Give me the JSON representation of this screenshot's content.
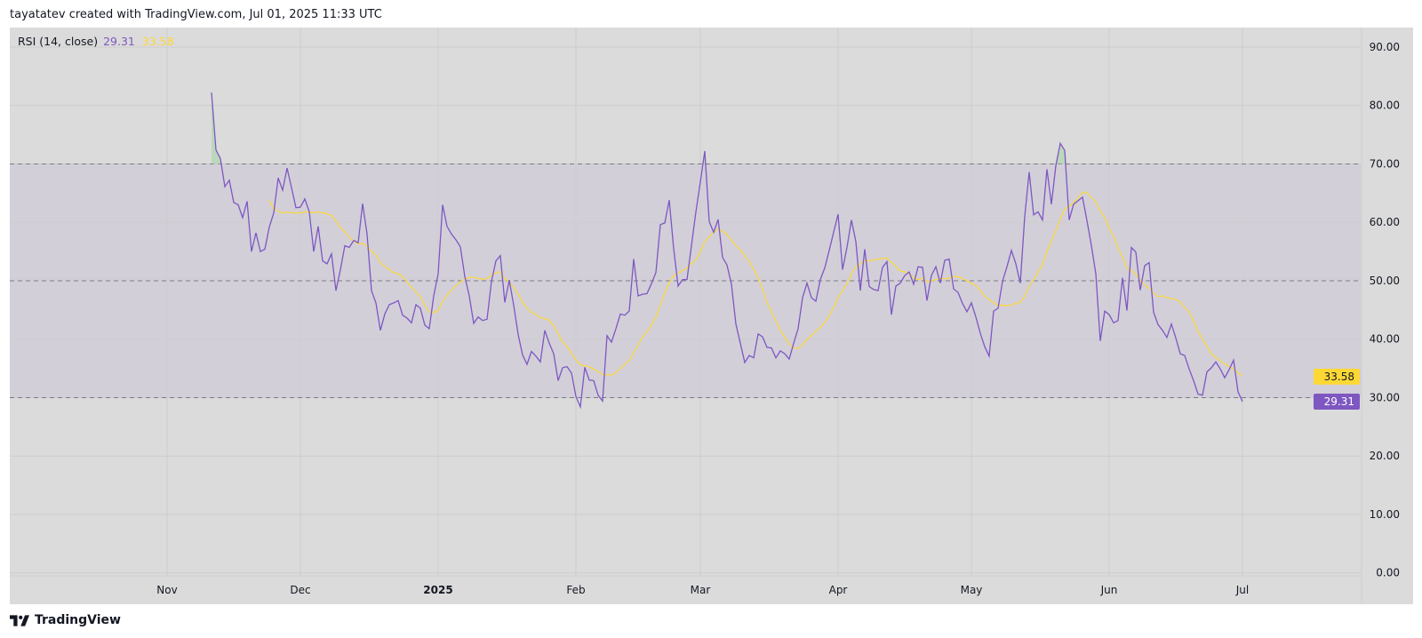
{
  "header": {
    "attribution": "tayatatev created with TradingView.com, Jul 01, 2025 11:33 UTC"
  },
  "legend": {
    "label": "RSI (14, close)",
    "rsi_value": "29.31",
    "ma_value": "33.58"
  },
  "footer": {
    "brand": "TradingView"
  },
  "colors": {
    "rsi": "#7e57c2",
    "ma": "#fdd835",
    "band": "#d2cfd9",
    "background": "#dbdbdb",
    "overbought_fill": "#a5d6a7"
  },
  "chart_data": {
    "type": "line",
    "title": "RSI (14, close)",
    "ylim": [
      0,
      90
    ],
    "y_ticks": [
      "90.00",
      "80.00",
      "70.00",
      "60.00",
      "50.00",
      "40.00",
      "30.00",
      "20.00",
      "10.00",
      "0.00"
    ],
    "x_ticks": [
      {
        "label": "Nov",
        "date": "2024-11-01"
      },
      {
        "label": "Dec",
        "date": "2024-12-01"
      },
      {
        "label": "2025",
        "date": "2025-01-01"
      },
      {
        "label": "Feb",
        "date": "2025-02-01"
      },
      {
        "label": "Mar",
        "date": "2025-03-01"
      },
      {
        "label": "Apr",
        "date": "2025-04-01"
      },
      {
        "label": "May",
        "date": "2025-05-01"
      },
      {
        "label": "Jun",
        "date": "2025-06-01"
      },
      {
        "label": "Jul",
        "date": "2025-07-01"
      }
    ],
    "grid": true,
    "levels": {
      "upper": 70,
      "middle": 50,
      "lower": 30
    },
    "last_values": {
      "rsi": "29.31",
      "ma": "33.58"
    },
    "x": [
      "2024-11-11",
      "2024-11-12",
      "2024-11-13",
      "2024-11-14",
      "2024-11-15",
      "2024-11-16",
      "2024-11-17",
      "2024-11-18",
      "2024-11-19",
      "2024-11-20",
      "2024-11-21",
      "2024-11-22",
      "2024-11-23",
      "2024-11-24",
      "2024-11-25",
      "2024-11-26",
      "2024-11-27",
      "2024-11-28",
      "2024-11-29",
      "2024-11-30",
      "2024-12-01",
      "2024-12-02",
      "2024-12-03",
      "2024-12-04",
      "2024-12-05",
      "2024-12-06",
      "2024-12-07",
      "2024-12-08",
      "2024-12-09",
      "2024-12-10",
      "2024-12-11",
      "2024-12-12",
      "2024-12-13",
      "2024-12-14",
      "2024-12-15",
      "2024-12-16",
      "2024-12-17",
      "2024-12-18",
      "2024-12-19",
      "2024-12-20",
      "2024-12-21",
      "2024-12-22",
      "2024-12-23",
      "2024-12-24",
      "2024-12-25",
      "2024-12-26",
      "2024-12-27",
      "2024-12-28",
      "2024-12-29",
      "2024-12-30",
      "2024-12-31",
      "2025-01-01",
      "2025-01-02",
      "2025-01-03",
      "2025-01-04",
      "2025-01-05",
      "2025-01-06",
      "2025-01-07",
      "2025-01-08",
      "2025-01-09",
      "2025-01-10",
      "2025-01-11",
      "2025-01-12",
      "2025-01-13",
      "2025-01-14",
      "2025-01-15",
      "2025-01-16",
      "2025-01-17",
      "2025-01-18",
      "2025-01-19",
      "2025-01-20",
      "2025-01-21",
      "2025-01-22",
      "2025-01-23",
      "2025-01-24",
      "2025-01-25",
      "2025-01-26",
      "2025-01-27",
      "2025-01-28",
      "2025-01-29",
      "2025-01-30",
      "2025-01-31",
      "2025-02-01",
      "2025-02-02",
      "2025-02-03",
      "2025-02-04",
      "2025-02-05",
      "2025-02-06",
      "2025-02-07",
      "2025-02-08",
      "2025-02-09",
      "2025-02-10",
      "2025-02-11",
      "2025-02-12",
      "2025-02-13",
      "2025-02-14",
      "2025-02-15",
      "2025-02-16",
      "2025-02-17",
      "2025-02-18",
      "2025-02-19",
      "2025-02-20",
      "2025-02-21",
      "2025-02-22",
      "2025-02-23",
      "2025-02-24",
      "2025-02-25",
      "2025-02-26",
      "2025-02-27",
      "2025-02-28",
      "2025-03-01",
      "2025-03-02",
      "2025-03-03",
      "2025-03-04",
      "2025-03-05",
      "2025-03-06",
      "2025-03-07",
      "2025-03-08",
      "2025-03-09",
      "2025-03-10",
      "2025-03-11",
      "2025-03-12",
      "2025-03-13",
      "2025-03-14",
      "2025-03-15",
      "2025-03-16",
      "2025-03-17",
      "2025-03-18",
      "2025-03-19",
      "2025-03-20",
      "2025-03-21",
      "2025-03-22",
      "2025-03-23",
      "2025-03-24",
      "2025-03-25",
      "2025-03-26",
      "2025-03-27",
      "2025-03-28",
      "2025-03-29",
      "2025-03-30",
      "2025-03-31",
      "2025-04-01",
      "2025-04-02",
      "2025-04-03",
      "2025-04-04",
      "2025-04-05",
      "2025-04-06",
      "2025-04-07",
      "2025-04-08",
      "2025-04-09",
      "2025-04-10",
      "2025-04-11",
      "2025-04-12",
      "2025-04-13",
      "2025-04-14",
      "2025-04-15",
      "2025-04-16",
      "2025-04-17",
      "2025-04-18",
      "2025-04-19",
      "2025-04-20",
      "2025-04-21",
      "2025-04-22",
      "2025-04-23",
      "2025-04-24",
      "2025-04-25",
      "2025-04-26",
      "2025-04-27",
      "2025-04-28",
      "2025-04-29",
      "2025-04-30",
      "2025-05-01",
      "2025-05-02",
      "2025-05-03",
      "2025-05-04",
      "2025-05-05",
      "2025-05-06",
      "2025-05-07",
      "2025-05-08",
      "2025-05-09",
      "2025-05-10",
      "2025-05-11",
      "2025-05-12",
      "2025-05-13",
      "2025-05-14",
      "2025-05-15",
      "2025-05-16",
      "2025-05-17",
      "2025-05-18",
      "2025-05-19",
      "2025-05-20",
      "2025-05-21",
      "2025-05-22",
      "2025-05-23",
      "2025-05-24",
      "2025-05-25",
      "2025-05-26",
      "2025-05-27",
      "2025-05-28",
      "2025-05-29",
      "2025-05-30",
      "2025-05-31",
      "2025-06-01",
      "2025-06-02",
      "2025-06-03",
      "2025-06-04",
      "2025-06-05",
      "2025-06-06",
      "2025-06-07",
      "2025-06-08",
      "2025-06-09",
      "2025-06-10",
      "2025-06-11",
      "2025-06-12",
      "2025-06-13",
      "2025-06-14",
      "2025-06-15",
      "2025-06-16",
      "2025-06-17",
      "2025-06-18",
      "2025-06-19",
      "2025-06-20",
      "2025-06-21",
      "2025-06-22",
      "2025-06-23",
      "2025-06-24",
      "2025-06-25",
      "2025-06-26",
      "2025-06-27",
      "2025-06-28",
      "2025-06-29",
      "2025-06-30",
      "2025-07-01"
    ],
    "series": [
      {
        "name": "RSI",
        "color": "#7e57c2",
        "values": [
          82.2,
          72.4,
          70.9,
          66.1,
          67.2,
          63.4,
          63.0,
          60.8,
          63.6,
          55.0,
          58.2,
          55.0,
          55.4,
          59.2,
          61.6,
          67.6,
          65.5,
          69.3,
          65.9,
          62.5,
          62.6,
          64.0,
          61.8,
          55.0,
          59.3,
          53.4,
          52.9,
          54.6,
          48.3,
          51.9,
          56.0,
          55.7,
          56.9,
          56.5,
          63.2,
          58.0,
          48.3,
          46.2,
          41.5,
          44.3,
          45.9,
          46.2,
          46.6,
          44.1,
          43.6,
          42.8,
          45.9,
          45.3,
          42.4,
          41.8,
          47.4,
          51.2,
          63.0,
          59.3,
          58.0,
          57.0,
          55.8,
          50.7,
          47.4,
          42.7,
          43.8,
          43.2,
          43.4,
          49.9,
          53.4,
          54.3,
          46.3,
          50.1,
          45.8,
          40.8,
          37.3,
          35.7,
          37.9,
          37.1,
          36.1,
          41.5,
          39.3,
          37.5,
          32.9,
          35.1,
          35.3,
          34.2,
          30.2,
          28.4,
          35.2,
          33.0,
          32.9,
          30.4,
          29.4,
          40.6,
          39.5,
          41.8,
          44.3,
          44.1,
          44.8,
          53.7,
          47.4,
          47.7,
          47.8,
          49.5,
          51.4,
          59.6,
          59.9,
          63.8,
          55.5,
          49.1,
          50.2,
          50.2,
          56.0,
          61.8,
          66.9,
          72.2,
          60.1,
          58.3,
          60.5,
          54.0,
          52.7,
          49.4,
          42.6,
          39.3,
          36.0,
          37.2,
          36.8,
          40.9,
          40.4,
          38.6,
          38.5,
          36.8,
          38.0,
          37.5,
          36.6,
          39.3,
          41.8,
          47.1,
          49.6,
          47.1,
          46.5,
          50.2,
          52.2,
          55.2,
          58.3,
          61.4,
          51.9,
          55.7,
          60.4,
          56.7,
          48.3,
          55.4,
          49.0,
          48.5,
          48.3,
          52.3,
          53.3,
          44.2,
          49.1,
          49.6,
          50.9,
          51.5,
          49.4,
          52.4,
          52.3,
          46.6,
          50.9,
          52.4,
          49.6,
          53.5,
          53.7,
          48.6,
          48.0,
          46.1,
          44.7,
          46.2,
          43.8,
          41.0,
          38.7,
          37.1,
          44.8,
          45.3,
          49.9,
          52.4,
          55.2,
          52.9,
          49.6,
          61.0,
          68.6,
          61.3,
          61.8,
          60.4,
          69.1,
          63.1,
          69.7,
          73.5,
          72.3,
          60.4,
          63.1,
          63.7,
          64.3,
          60.3,
          56.0,
          51.2,
          39.7,
          44.8,
          44.2,
          42.8,
          43.2,
          50.5,
          44.9,
          55.7,
          54.9,
          48.4,
          52.6,
          53.1,
          44.6,
          42.5,
          41.5,
          40.3,
          42.6,
          40.2,
          37.5,
          37.2,
          34.9,
          32.9,
          30.6,
          30.4,
          34.4,
          35.1,
          36.1,
          34.9,
          33.4,
          34.8,
          36.4,
          31.0,
          29.31
        ]
      },
      {
        "color": "#fdd835",
        "derived_from": "RSI",
        "method": "SMA",
        "length": 14
      }
    ]
  }
}
